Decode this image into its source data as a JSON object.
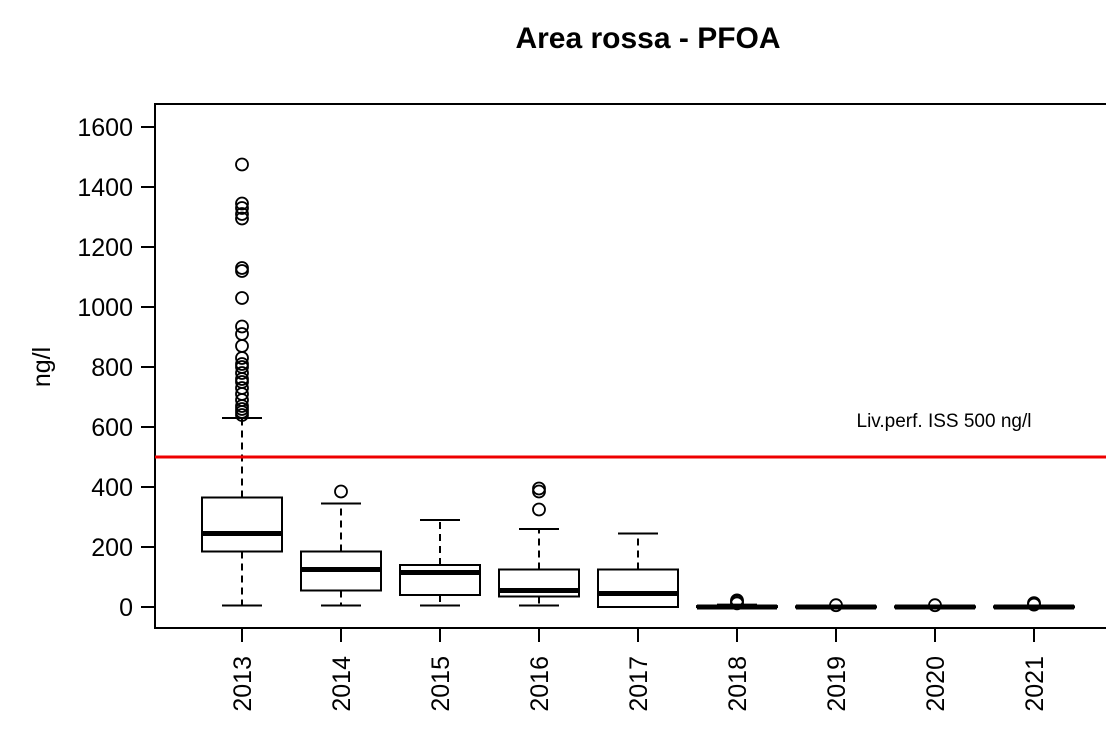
{
  "chart_data": {
    "type": "boxplot",
    "title": "Area rossa - PFOA",
    "xlabel": "",
    "ylabel": "ng/l",
    "ylim": [
      -70,
      1650
    ],
    "yticks": [
      0,
      200,
      400,
      600,
      800,
      1000,
      1200,
      1400,
      1600
    ],
    "yticks_labels": [
      "0",
      "200",
      "400",
      "600",
      "800",
      "1000",
      "1200",
      "1400",
      "1600"
    ],
    "grid": false,
    "categories": [
      "2013",
      "2014",
      "2015",
      "2016",
      "2017",
      "2018",
      "2019",
      "2020",
      "2021"
    ],
    "boxes": [
      {
        "min": 5,
        "q1": 185,
        "median": 245,
        "q3": 365,
        "max": 630,
        "outliers": [
          640,
          650,
          660,
          670,
          690,
          710,
          730,
          750,
          760,
          780,
          800,
          810,
          830,
          870,
          910,
          935,
          1030,
          1120,
          1130,
          1295,
          1310,
          1330,
          1345,
          1475
        ]
      },
      {
        "min": 5,
        "q1": 55,
        "median": 125,
        "q3": 185,
        "max": 345,
        "outliers": [
          385
        ]
      },
      {
        "min": 5,
        "q1": 40,
        "median": 115,
        "q3": 140,
        "max": 290,
        "outliers": []
      },
      {
        "min": 5,
        "q1": 35,
        "median": 55,
        "q3": 125,
        "max": 260,
        "outliers": [
          325,
          385,
          395
        ]
      },
      {
        "min": 0,
        "q1": 0,
        "median": 45,
        "q3": 125,
        "max": 245,
        "outliers": []
      },
      {
        "min": 0,
        "q1": 0,
        "median": 0,
        "q3": 3,
        "max": 8,
        "outliers": [
          12,
          18,
          22
        ]
      },
      {
        "min": 0,
        "q1": 0,
        "median": 0,
        "q3": 2,
        "max": 4,
        "outliers": [
          6
        ]
      },
      {
        "min": 0,
        "q1": 0,
        "median": 0,
        "q3": 2,
        "max": 4,
        "outliers": [
          6
        ]
      },
      {
        "min": 0,
        "q1": 0,
        "median": 0,
        "q3": 2,
        "max": 5,
        "outliers": [
          8,
          13
        ]
      }
    ],
    "reference_line": {
      "value": 500,
      "label": "Liv.perf. ISS 500 ng/l",
      "color": "#ee0000"
    }
  }
}
